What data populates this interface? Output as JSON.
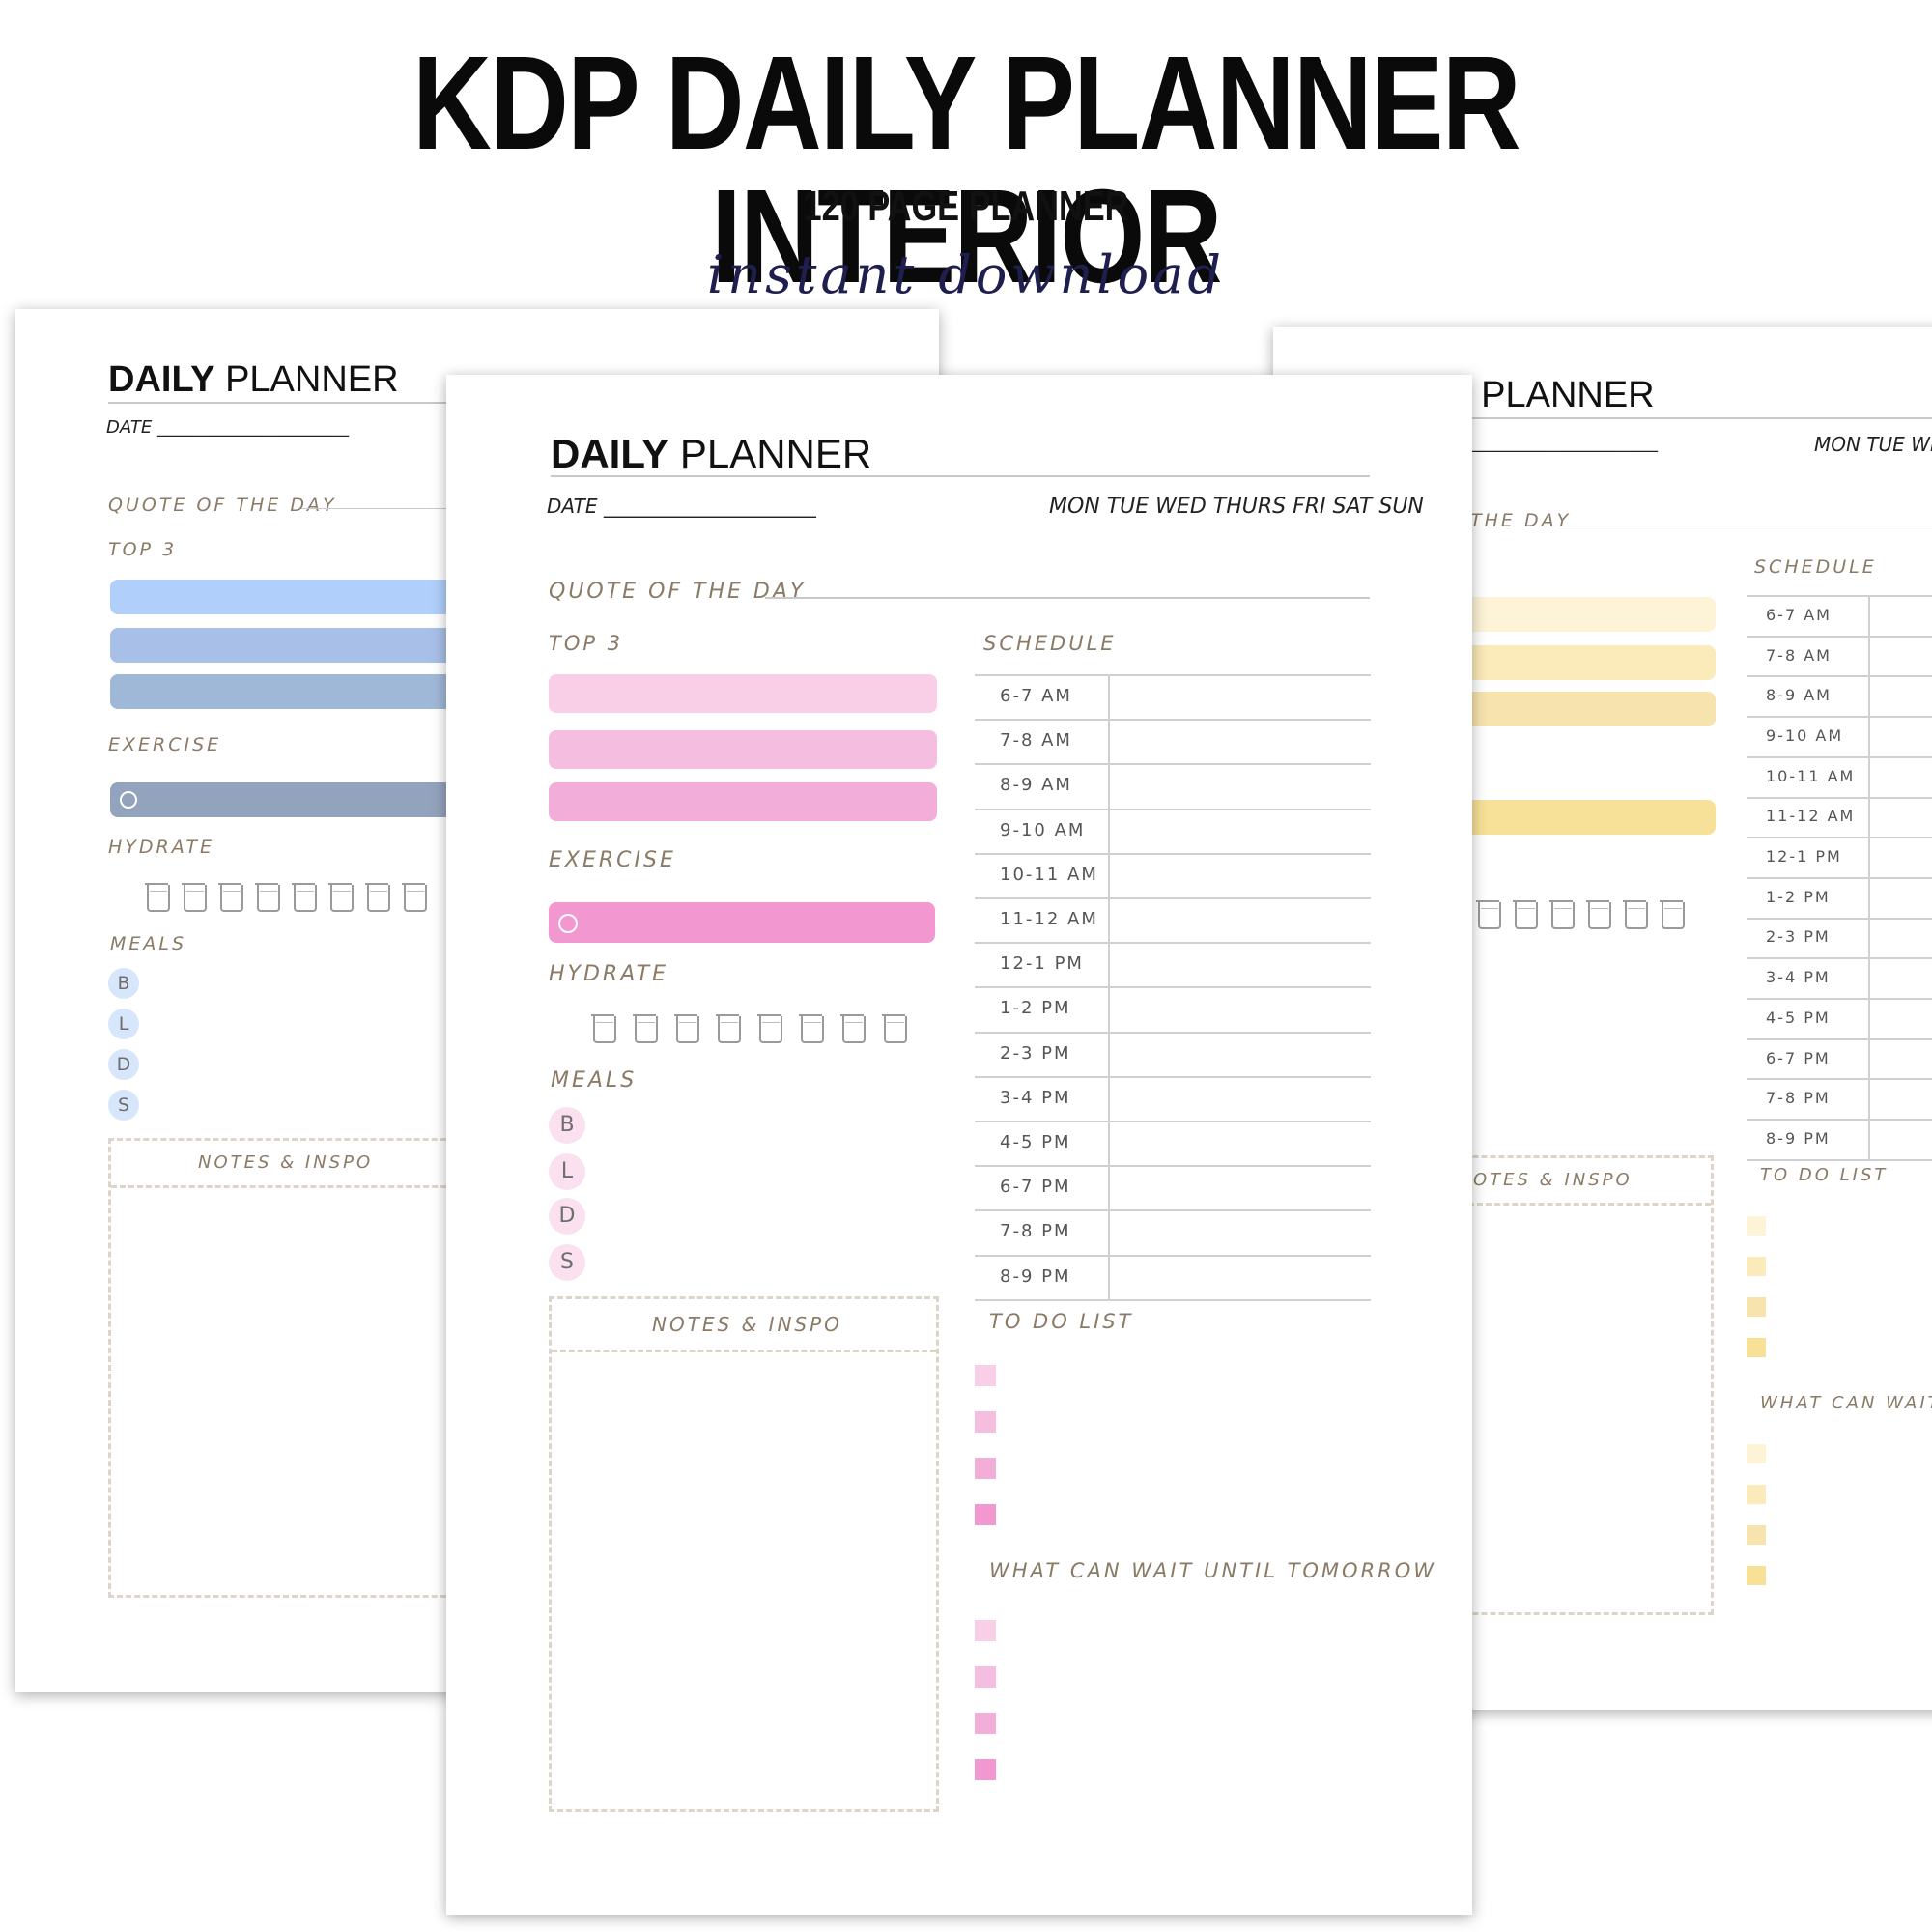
{
  "header": {
    "title": "KDP DAILY PLANNER INTERIOR",
    "subtitle": "120 PAGE PLANNER",
    "script": "instant download"
  },
  "planner": {
    "title_bold": "DAILY",
    "title_rest": "PLANNER",
    "date_label": "DATE",
    "date_line": "______________________",
    "days": "MON TUE WED THURS FRI SAT SUN",
    "quote_label": "QUOTE OF THE DAY",
    "top3_label": "TOP 3",
    "exercise_label": "EXERCISE",
    "hydrate_label": "HYDRATE",
    "meals_label": "MEALS",
    "meals": [
      "B",
      "L",
      "D",
      "S"
    ],
    "notes_label": "NOTES & INSPO",
    "schedule_label": "SCHEDULE",
    "schedule": [
      "6-7 AM",
      "7-8 AM",
      "8-9 AM",
      "9-10 AM",
      "10-11 AM",
      "11-12 AM",
      "12-1 PM",
      "1-2 PM",
      "2-3 PM",
      "3-4 PM",
      "4-5 PM",
      "6-7 PM",
      "7-8 PM",
      "8-9 PM"
    ],
    "todo_label": "TO DO LIST",
    "wait_label": "WHAT CAN WAIT UNTIL TOMORROW"
  },
  "left_page": {
    "visible_title_rest": "PLANNER",
    "hydrate_cups": 8
  },
  "right_page": {
    "visible_title": "PLANNER",
    "visible_title_prefix": "/",
    "visible_days": "MON TUE WED",
    "visible_quote": "THE DAY",
    "visible_notes": "OTES & INSPO",
    "visible_wait": "WHAT CAN WAIT U"
  },
  "colors": {
    "pink": [
      "#f9cfe7",
      "#f5bde0",
      "#f2add9",
      "#f297cf"
    ],
    "blue": [
      "#b0d0fb",
      "#a8c0e8",
      "#a0b8d8",
      "#94a3bd"
    ],
    "yellow": [
      "#fdf3d7",
      "#fbeaba",
      "#f6e3ae",
      "#f7e198"
    ],
    "label": "#8a7a66",
    "notes_dash": "#ddd6c8"
  },
  "icons": {
    "exercise": "clock-icon",
    "hydrate": "cup-icon"
  }
}
